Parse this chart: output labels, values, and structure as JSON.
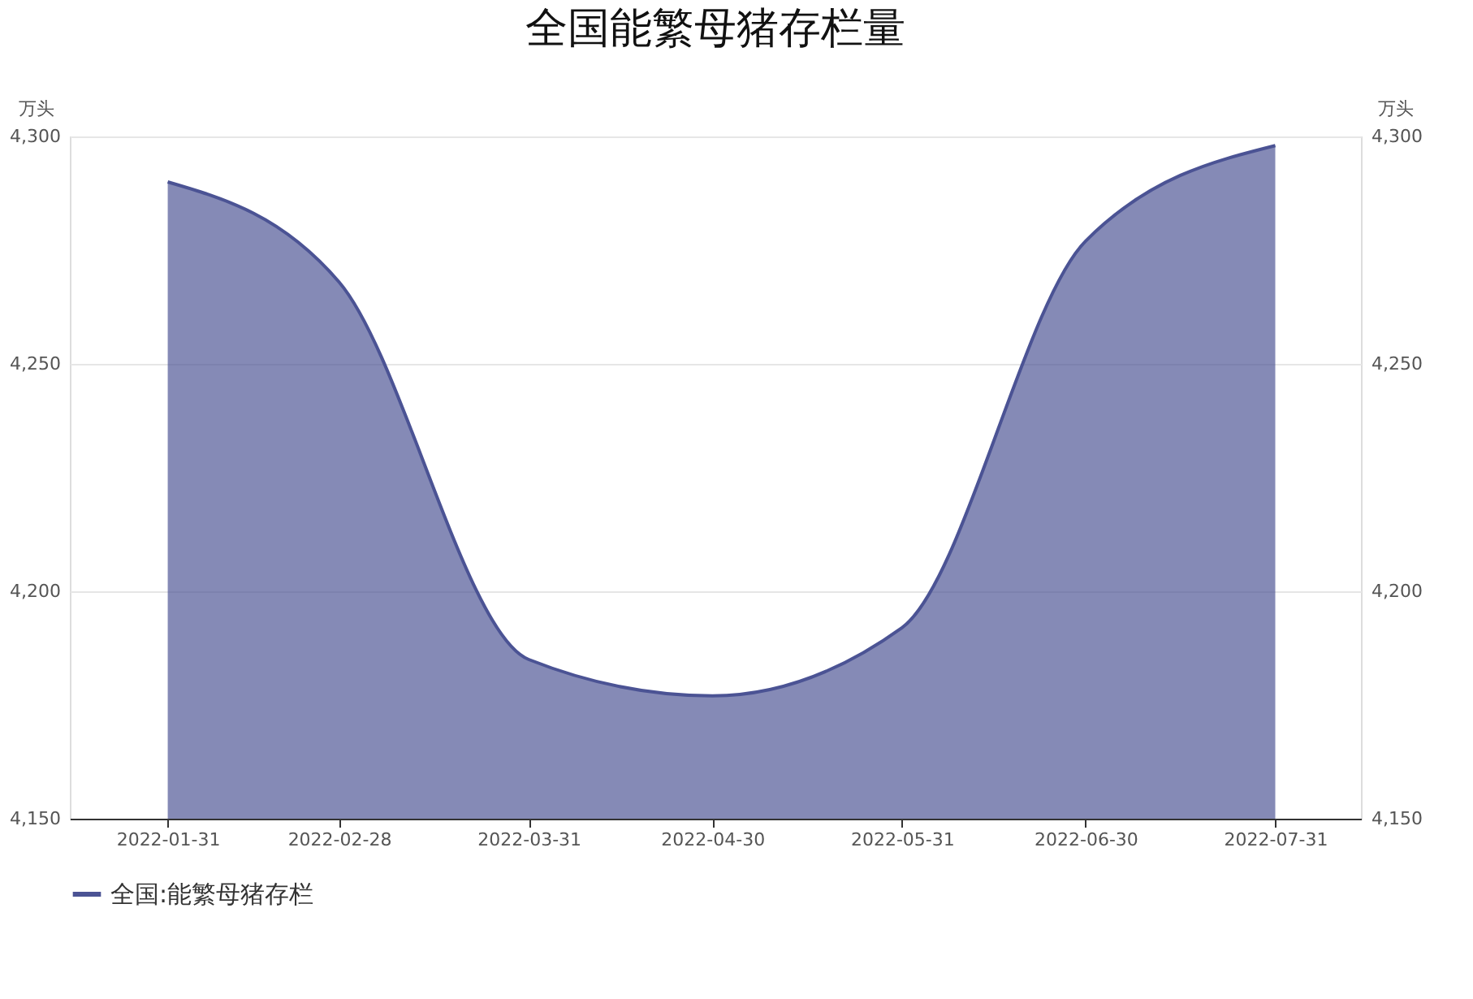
{
  "chart_data": {
    "type": "area",
    "title": "全国能繁母猪存栏量",
    "x": [
      "2022-01-31",
      "2022-02-28",
      "2022-03-31",
      "2022-04-30",
      "2022-05-31",
      "2022-06-30",
      "2022-07-31"
    ],
    "series": [
      {
        "name": "全国:能繁母猪存栏",
        "color": "#4b5394",
        "values": [
          4290,
          4268,
          4185,
          4177,
          4192,
          4277,
          4298
        ]
      }
    ],
    "xlim": [
      "2022-01-15",
      "2022-08-14"
    ],
    "xticks": [
      "2022-01-31",
      "2022-02-28",
      "2022-03-31",
      "2022-04-30",
      "2022-05-31",
      "2022-06-30",
      "2022-07-31"
    ],
    "ylabel": "万头",
    "ylim": [
      4150,
      4300
    ],
    "yticks": [
      {
        "value": 4150,
        "label": "4,150"
      },
      {
        "value": 4200,
        "label": "4,200"
      },
      {
        "value": 4250,
        "label": "4,250"
      },
      {
        "value": 4300,
        "label": "4,300"
      }
    ],
    "y2label": "万头",
    "y2lim": [
      4150,
      4300
    ],
    "y2ticks": [
      {
        "value": 4150,
        "label": "4,150"
      },
      {
        "value": 4200,
        "label": "4,200"
      },
      {
        "value": 4250,
        "label": "4,250"
      },
      {
        "value": 4300,
        "label": "4,300"
      }
    ],
    "grid": "y",
    "legend": "bottom"
  }
}
